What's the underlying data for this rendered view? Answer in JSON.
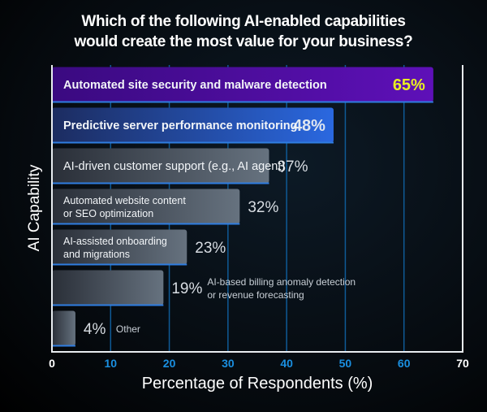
{
  "chart_data": {
    "type": "bar",
    "orientation": "horizontal",
    "title": "Which of the following AI-enabled capabilities would create the most value for your business?",
    "title_lines": [
      "Which of the following AI-enabled capabilities",
      "would create the most value for your business?"
    ],
    "xlabel": "Percentage of Respondents (%)",
    "ylabel": "AI Capability",
    "xlim": [
      0,
      70
    ],
    "xticks": [
      0,
      10,
      20,
      30,
      40,
      50,
      60,
      70
    ],
    "grid": true,
    "categories": [
      "Automated site security and malware detection",
      "Predictive server performance monitoring",
      "AI-driven customer support (e.g., AI agent)",
      "Automated website content or SEO optimization",
      "AI-assisted onboarding and migrations",
      "AI-based billing anomaly detection or revenue forecasting",
      "Other"
    ],
    "category_lines": [
      [
        "Automated site security and malware detection"
      ],
      [
        "Predictive server performance monitoring"
      ],
      [
        "AI-driven customer support (e.g., AI agent)"
      ],
      [
        "Automated website content",
        "or SEO optimization"
      ],
      [
        "AI-assisted onboarding",
        "and migrations"
      ],
      [
        "AI-based billing anomaly detection",
        "or revenue forecasting"
      ],
      [
        "Other"
      ]
    ],
    "values": [
      65,
      48,
      37,
      32,
      23,
      19,
      4
    ],
    "value_labels": [
      "65%",
      "48%",
      "37%",
      "32%",
      "23%",
      "19%",
      "4%"
    ],
    "colors": {
      "highlight_1": "#5a0fb0",
      "highlight_2": "#2a5fd0",
      "other_bars": "#5a6674",
      "highlight_value": "#e8f020",
      "tick_blue": "#1a8fe0",
      "grid": "#0f5a96"
    }
  }
}
